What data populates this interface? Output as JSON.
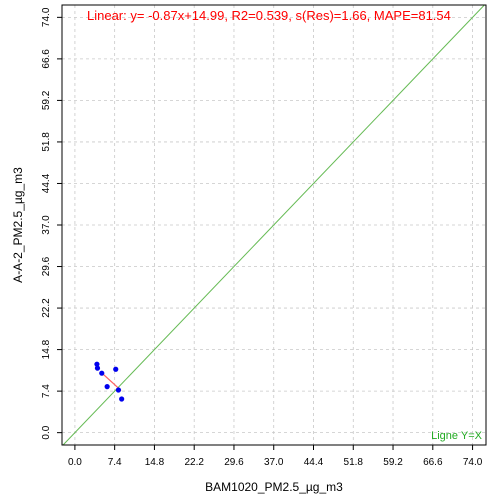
{
  "chart_data": {
    "type": "scatter",
    "title": "Linear: y= -0.87x+14.99, R2=0.539, s(Res)=1.66, MAPE=81.54",
    "xlabel": "BAM1020_PM2.5_µg_m3",
    "ylabel": "A-A-2_PM2.5_µg_m3",
    "xlim": [
      -2.4,
      76.5
    ],
    "ylim": [
      -2.2,
      76.2
    ],
    "xticks": [
      0.0,
      7.4,
      14.8,
      22.2,
      29.6,
      37.0,
      44.4,
      51.8,
      59.2,
      66.6,
      74.0
    ],
    "yticks": [
      0.0,
      7.4,
      14.8,
      22.2,
      29.6,
      37.0,
      44.4,
      51.8,
      59.2,
      66.6,
      74.0
    ],
    "xtick_labels": [
      "0.0",
      "7.4",
      "14.8",
      "22.2",
      "29.6",
      "37.0",
      "44.4",
      "51.8",
      "59.2",
      "66.6",
      "74.0"
    ],
    "ytick_labels": [
      "0.0",
      "7.4",
      "14.8",
      "22.2",
      "29.6",
      "37.0",
      "44.4",
      "51.8",
      "59.2",
      "66.6",
      "74.0"
    ],
    "grid": true,
    "points": {
      "x": [
        4.1,
        4.2,
        5.0,
        6.0,
        7.6,
        8.1,
        8.7
      ],
      "y": [
        12.2,
        11.5,
        10.6,
        8.2,
        11.3,
        7.6,
        6.0
      ]
    },
    "regression": {
      "slope": -0.87,
      "intercept": 14.99,
      "x_range": [
        5.2,
        8.6
      ]
    },
    "reference_line": {
      "label": "Ligne Y=X"
    },
    "colors": {
      "points": "#0000ee",
      "regression": "#ff6060",
      "reference": "#66bb55",
      "title": "#ff0000",
      "reference_label": "#22aa22",
      "grid": "#c8c8c8"
    }
  }
}
